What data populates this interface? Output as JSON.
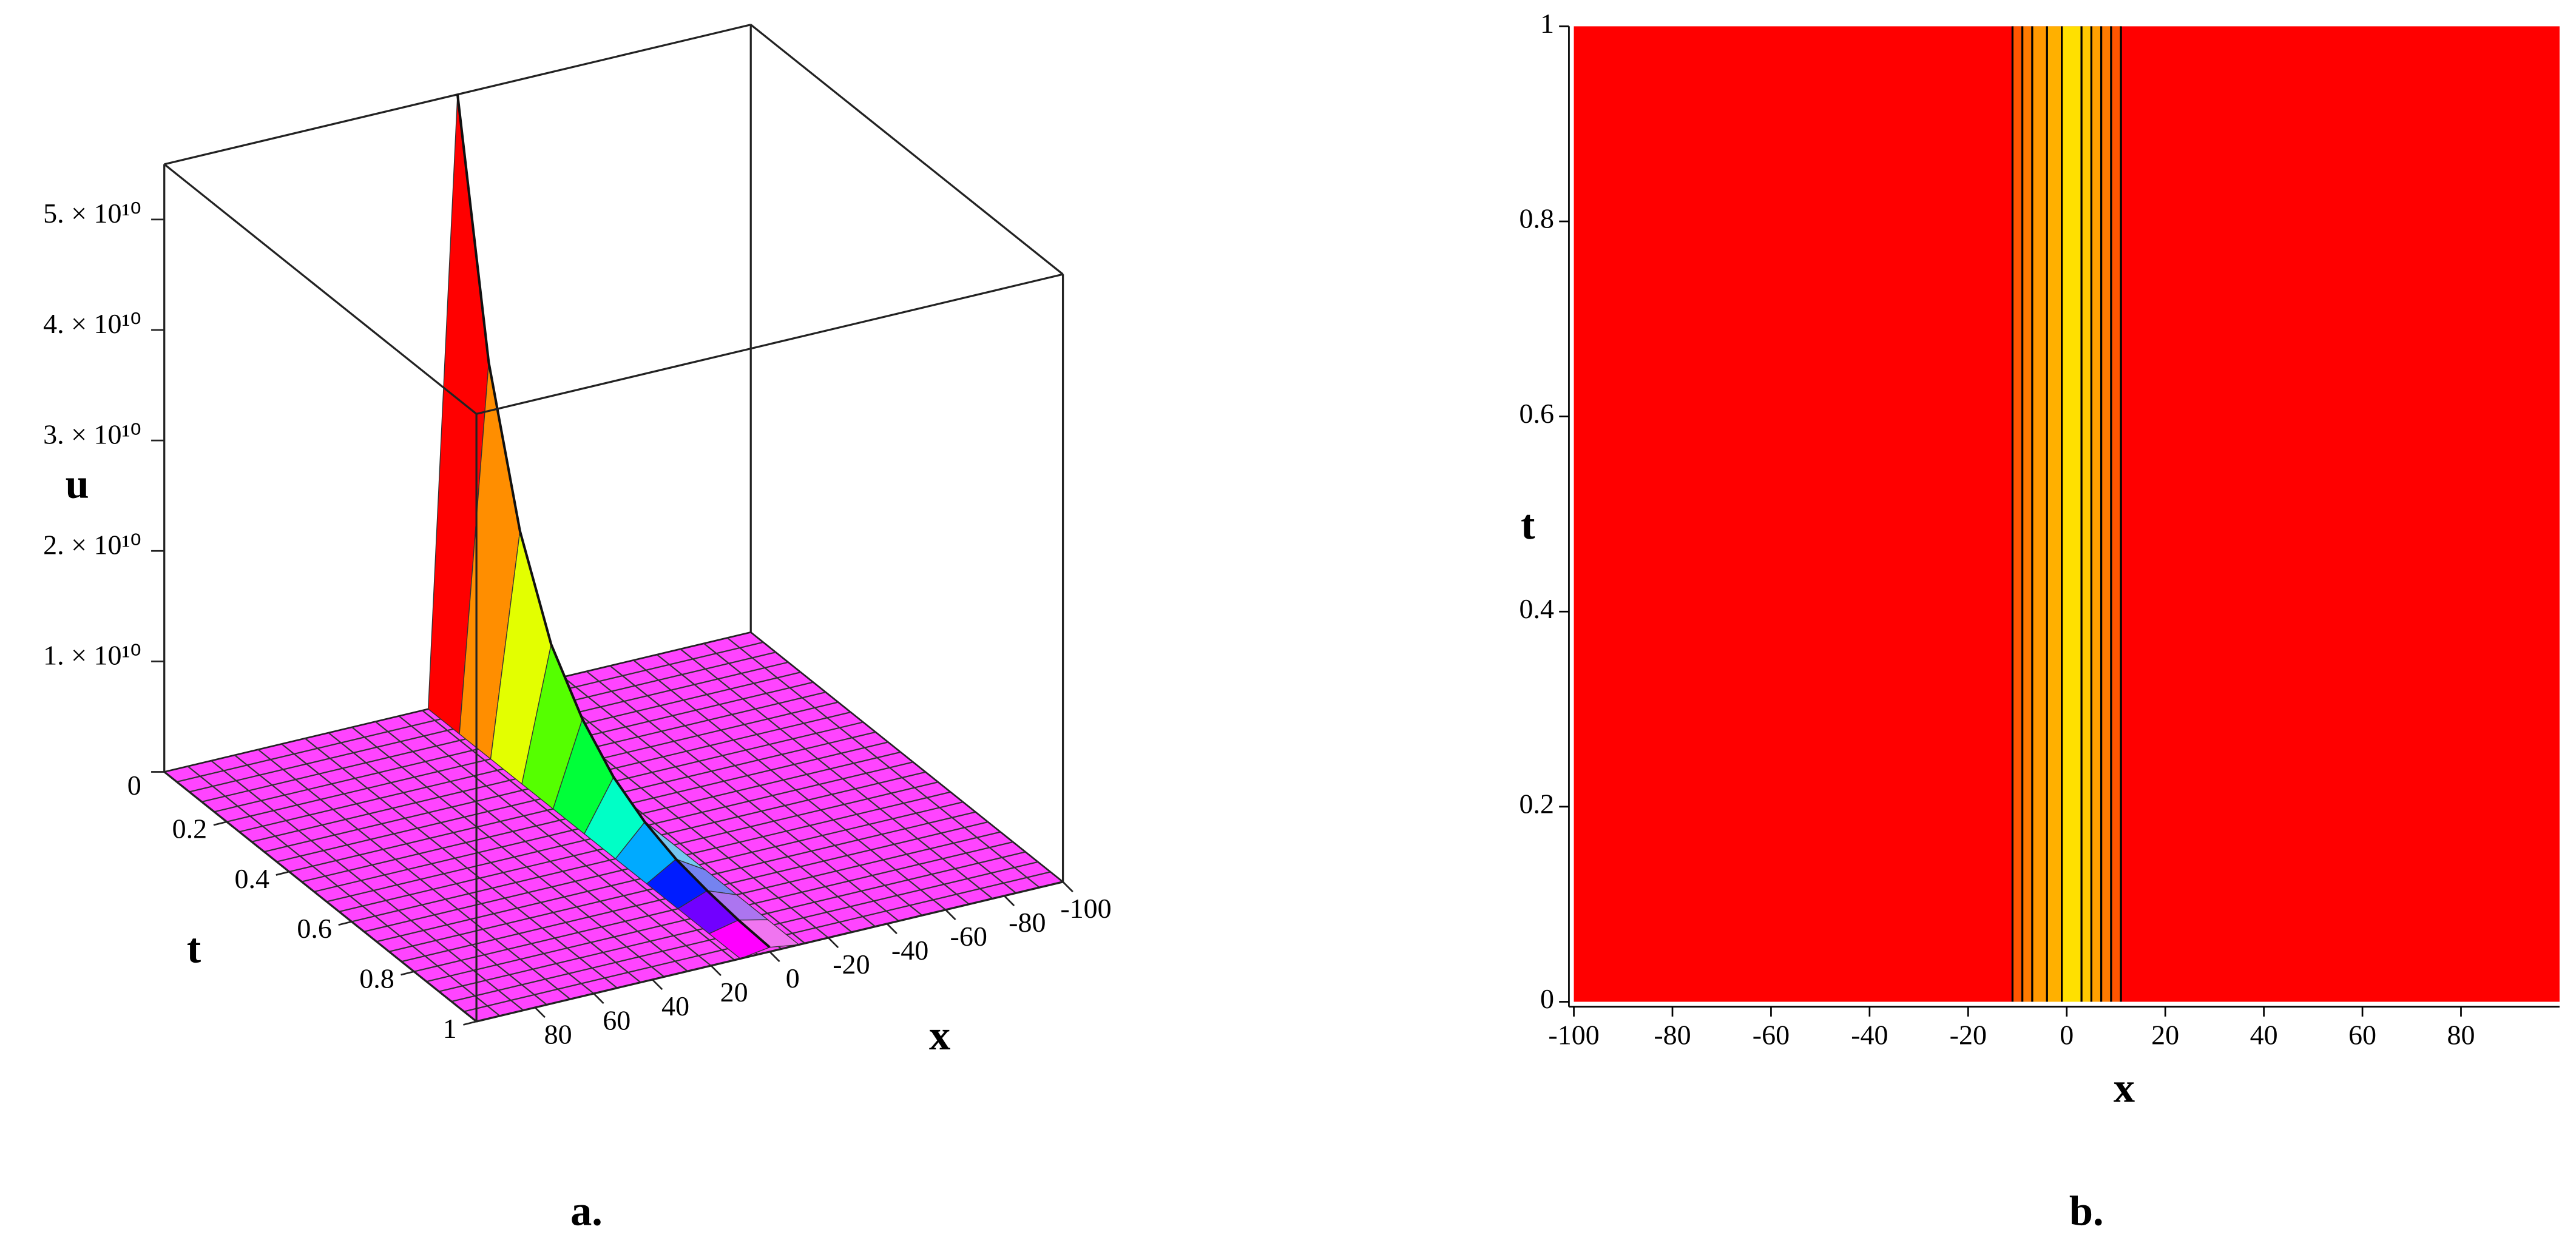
{
  "chart_data": [
    {
      "type": "surface3d",
      "caption": "a.",
      "zlabel": "u",
      "tlabel": "t",
      "xlabel": "x",
      "zlim": [
        0,
        55000000000
      ],
      "zticks": [
        0,
        {
          "value": 10000000000,
          "label": "1. × 10¹⁰"
        },
        {
          "value": 20000000000,
          "label": "2. × 10¹⁰"
        },
        {
          "value": 30000000000,
          "label": "3. × 10¹⁰"
        },
        {
          "value": 40000000000,
          "label": "4. × 10¹⁰"
        },
        {
          "value": 50000000000,
          "label": "5. × 10¹⁰"
        }
      ],
      "tlim": [
        0,
        1
      ],
      "tticks": [
        0.2,
        0.4,
        0.6,
        0.8,
        1
      ],
      "xlim": [
        100,
        -100
      ],
      "xticks": [
        80,
        60,
        40,
        20,
        0,
        -20,
        -40,
        -60,
        -80,
        -100
      ],
      "floor_color": "#ff44ff",
      "ridge": {
        "t": [
          0,
          0.1,
          0.2,
          0.3,
          0.4,
          0.5,
          0.6,
          0.7,
          0.8,
          0.9,
          1
        ],
        "values": [
          55000000000,
          33000000000,
          20000000000,
          12000000000,
          7500000000,
          4500000000,
          2700000000,
          1600000000,
          1000000000,
          600000000,
          400000000
        ]
      }
    },
    {
      "type": "contour",
      "caption": "b.",
      "xlabel": "x",
      "ylabel": "t",
      "xlim": [
        -100,
        100
      ],
      "xticks": [
        -100,
        -80,
        -60,
        -40,
        -20,
        0,
        20,
        40,
        60,
        80
      ],
      "ylim": [
        0,
        1
      ],
      "yticks": [
        0,
        0.2,
        0.4,
        0.6,
        0.8,
        1
      ],
      "background": "#ff0000",
      "levels_x": [
        -11,
        -9,
        -7,
        -4,
        -1,
        3,
        5,
        7,
        9,
        11
      ],
      "band_colors": [
        "#ff5500",
        "#ff7a00",
        "#ff9900",
        "#ffb000",
        "#ffe000",
        "#ffc800",
        "#ffa000",
        "#ff7a00",
        "#ff5500"
      ]
    }
  ]
}
